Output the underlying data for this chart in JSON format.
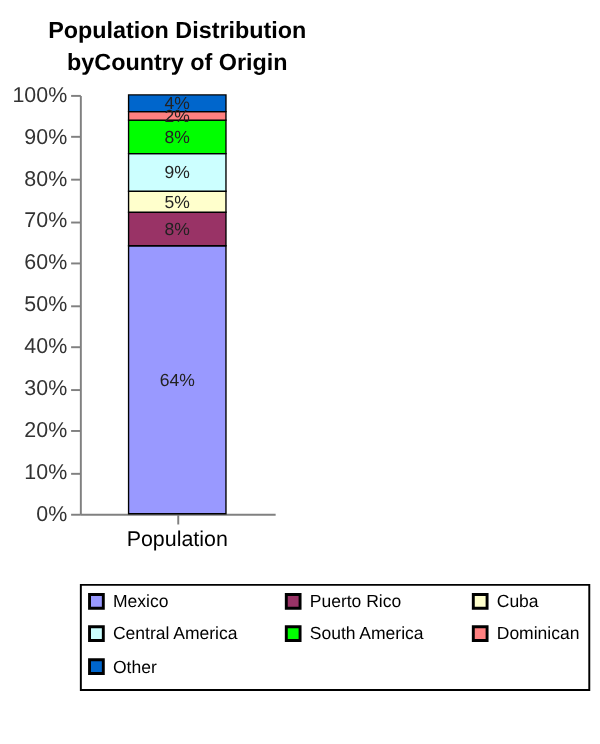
{
  "chart_data": {
    "type": "bar",
    "title": "Population Distribution byCountry of Origin",
    "stacked": true,
    "categories": [
      "Population"
    ],
    "series": [
      {
        "name": "Mexico",
        "color": "#9999ff",
        "values": [
          64
        ],
        "value_labels": [
          "64%"
        ]
      },
      {
        "name": "Puerto Rico",
        "color": "#993366",
        "values": [
          8
        ],
        "value_labels": [
          "8%"
        ]
      },
      {
        "name": "Cuba",
        "color": "#ffffcc",
        "values": [
          5
        ],
        "value_labels": [
          "5%"
        ]
      },
      {
        "name": "Central America",
        "color": "#ccffff",
        "values": [
          9
        ],
        "value_labels": [
          "9%"
        ]
      },
      {
        "name": "South America",
        "color": "#00ff00",
        "values": [
          8
        ],
        "value_labels": [
          "8%"
        ]
      },
      {
        "name": "Dominican",
        "color": "#ff8080",
        "values": [
          2
        ],
        "value_labels": [
          "2%"
        ]
      },
      {
        "name": "Other",
        "color": "#0066cc",
        "values": [
          4
        ],
        "value_labels": [
          "4%"
        ]
      }
    ],
    "ylim": [
      0,
      100
    ],
    "yticks": [
      {
        "value": 0,
        "label": "0%"
      },
      {
        "value": 10,
        "label": "10%"
      },
      {
        "value": 20,
        "label": "20%"
      },
      {
        "value": 30,
        "label": "30%"
      },
      {
        "value": 40,
        "label": "40%"
      },
      {
        "value": 50,
        "label": "50%"
      },
      {
        "value": 60,
        "label": "60%"
      },
      {
        "value": 70,
        "label": "70%"
      },
      {
        "value": 80,
        "label": "80%"
      },
      {
        "value": 90,
        "label": "90%"
      },
      {
        "value": 100,
        "label": "100%"
      }
    ],
    "grid": false,
    "legend": "bottom"
  }
}
